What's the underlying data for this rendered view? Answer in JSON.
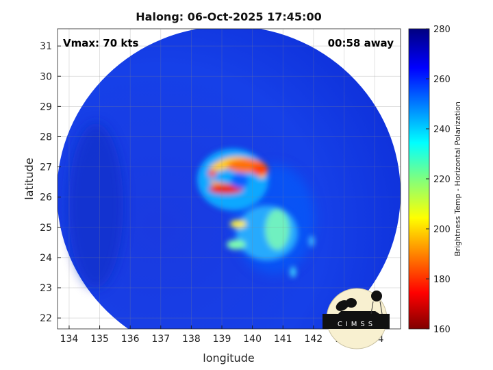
{
  "chart_data": {
    "type": "heatmap",
    "title": "Halong: 06-Oct-2025 17:45:00",
    "xlabel": "longitude",
    "ylabel": "latitude",
    "xlim": [
      133.62,
      144.85
    ],
    "ylim": [
      21.64,
      31.57
    ],
    "xticks": [
      "134",
      "135",
      "136",
      "137",
      "138",
      "139",
      "140",
      "141",
      "142",
      "143",
      "144"
    ],
    "yticks": [
      "22",
      "23",
      "24",
      "25",
      "26",
      "27",
      "28",
      "29",
      "30",
      "31"
    ],
    "grid": true,
    "annotations": {
      "vmax": "Vmax: 70 kts",
      "time_away": "00:58 away"
    },
    "storm_center": {
      "lon": 139.3,
      "lat": 26.5
    },
    "colorbar": {
      "label": "Brightness Temp - Horizontal Polarization",
      "range": [
        160,
        280
      ],
      "ticks": [
        "160",
        "180",
        "200",
        "220",
        "240",
        "260",
        "280"
      ],
      "colormap": "jet",
      "colors": [
        "#800000",
        "#ff0000",
        "#ffff00",
        "#00ffff",
        "#0000ff",
        "#000080"
      ]
    }
  },
  "logo": {
    "text": "CIMSS"
  }
}
